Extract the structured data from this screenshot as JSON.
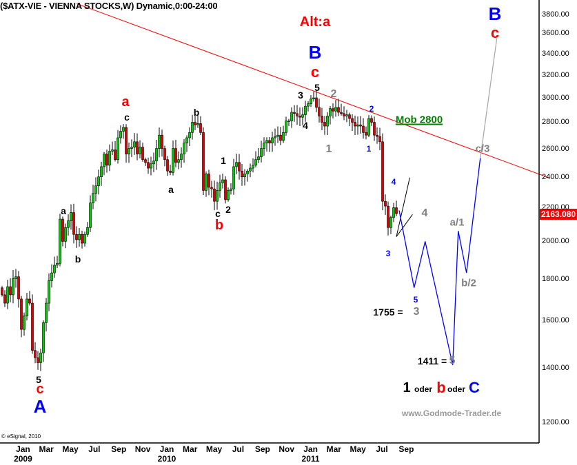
{
  "title": "($ATX-VIE - VIENNA STOCKS,W) Dynamic,0:00-24:00",
  "copyright": "© eSignal, 2010",
  "watermark": "www.Godmode-Trader.de",
  "last_price_tag": "2163.080",
  "colors": {
    "up": "#00cc00",
    "down": "#dd0000",
    "trendline": "#ff0000",
    "forecast": "#0000ff",
    "forecast_ext": "#aaaaaa",
    "tag": "#ff0000"
  },
  "chart_data": {
    "type": "candlestick",
    "scale": "log",
    "ylim": [
      1200,
      3800
    ],
    "grid": false,
    "interval": "weekly",
    "start_week": "2008-11-14",
    "closes": [
      1720,
      1680,
      1760,
      1720,
      1800,
      1810,
      1700,
      1560,
      1620,
      1700,
      1680,
      1470,
      1440,
      1420,
      1460,
      1590,
      1680,
      1790,
      1830,
      1870,
      1880,
      2130,
      2000,
      2080,
      2120,
      2170,
      2040,
      2010,
      2040,
      1990,
      2040,
      2080,
      2230,
      2290,
      2340,
      2400,
      2470,
      2560,
      2480,
      2580,
      2590,
      2520,
      2680,
      2730,
      2760,
      2560,
      2600,
      2610,
      2650,
      2560,
      2610,
      2520,
      2500,
      2460,
      2490,
      2510,
      2600,
      2700,
      2600,
      2520,
      2440,
      2430,
      2600,
      2500,
      2520,
      2560,
      2640,
      2680,
      2720,
      2800,
      2780,
      2790,
      2720,
      2310,
      2420,
      2330,
      2320,
      2240,
      2310,
      2360,
      2380,
      2250,
      2310,
      2320,
      2470,
      2500,
      2440,
      2400,
      2420,
      2440,
      2460,
      2480,
      2520,
      2540,
      2600,
      2640,
      2660,
      2640,
      2680,
      2690,
      2700,
      2660,
      2720,
      2810,
      2810,
      2880,
      2870,
      2850,
      2840,
      2860,
      2930,
      2950,
      2990,
      3000,
      2920,
      2850,
      2800,
      2770,
      2850,
      2910,
      2890,
      2920,
      2880,
      2870,
      2850,
      2860,
      2830,
      2800,
      2770,
      2780,
      2770,
      2720,
      2700,
      2830,
      2800,
      2700,
      2690,
      2650,
      2240,
      2210,
      2080,
      2140,
      2200,
      2163
    ],
    "y_ticks": [
      "1200.00",
      "1400.00",
      "1600.00",
      "1800.00",
      "2000.00",
      "2200.00",
      "2400.00",
      "2600.00",
      "2800.00",
      "3000.00",
      "3200.00",
      "3400.00",
      "3600.00",
      "3800.00"
    ],
    "x_ticks": [
      {
        "date": "2009-01-01",
        "label": "Jan",
        "year": "2009"
      },
      {
        "date": "2009-03-01",
        "label": "Mar"
      },
      {
        "date": "2009-05-01",
        "label": "May"
      },
      {
        "date": "2009-07-01",
        "label": "Jul"
      },
      {
        "date": "2009-09-01",
        "label": "Sep"
      },
      {
        "date": "2009-11-01",
        "label": "Nov"
      },
      {
        "date": "2010-01-01",
        "label": "Jan",
        "year": "2010"
      },
      {
        "date": "2010-03-01",
        "label": "Mar"
      },
      {
        "date": "2010-05-01",
        "label": "May"
      },
      {
        "date": "2010-07-01",
        "label": "Jul"
      },
      {
        "date": "2010-09-01",
        "label": "Sep"
      },
      {
        "date": "2010-11-01",
        "label": "Nov"
      },
      {
        "date": "2011-01-01",
        "label": "Jan",
        "year": "2011"
      },
      {
        "date": "2011-03-01",
        "label": "Mar"
      },
      {
        "date": "2011-05-01",
        "label": "May"
      },
      {
        "date": "2011-07-01",
        "label": "Jul"
      },
      {
        "date": "2011-09-01",
        "label": "Sep"
      }
    ],
    "trendline": [
      [
        "2009-05-22",
        3915
      ],
      [
        "2012-09-01",
        2395
      ]
    ],
    "triangle": {
      "apex": [
        "2011-08-12",
        2027
      ],
      "upper": [
        "2011-09-15",
        2395
      ],
      "lower": [
        "2011-09-22",
        2158
      ]
    },
    "forecast_path": [
      [
        "2011-08-19",
        2183
      ],
      [
        "2011-09-26",
        1755
      ],
      [
        "2011-10-24",
        2000
      ],
      [
        "2012-01-02",
        1411
      ],
      [
        "2012-01-16",
        2060
      ],
      [
        "2012-02-06",
        1830
      ],
      [
        "2012-03-12",
        2530
      ]
    ],
    "forecast_extension": [
      [
        "2012-03-12",
        2530
      ],
      [
        "2012-04-23",
        3550
      ]
    ],
    "annotations": [
      {
        "text": "Alt:a",
        "color": "#ff0000"
      },
      {
        "text": "B",
        "color": "#0000ff"
      },
      {
        "text": "c",
        "color": "#ff0000"
      },
      {
        "text": "5",
        "color": "#000000"
      },
      {
        "text": "3",
        "color": "#000000"
      },
      {
        "text": "4",
        "color": "#000000"
      },
      {
        "text": "2",
        "color": "#808080"
      },
      {
        "text": "1",
        "color": "#808080"
      },
      {
        "text": "2",
        "color": "#0000ff"
      },
      {
        "text": "1",
        "color": "#0000ff"
      },
      {
        "text": "Mob 2800",
        "color": "#008000"
      },
      {
        "text": "4",
        "color": "#0000ff"
      },
      {
        "text": "3",
        "color": "#0000ff"
      },
      {
        "text": "4",
        "color": "#808080"
      },
      {
        "text": "5",
        "color": "#0000ff"
      },
      {
        "text": "a/1",
        "color": "#808080"
      },
      {
        "text": "b/2",
        "color": "#808080"
      },
      {
        "text": "c/3",
        "color": "#808080"
      },
      {
        "text": "B",
        "color": "#0000ff"
      },
      {
        "text": "c",
        "color": "#ff0000"
      },
      {
        "text": "1755 =",
        "color": "#000000"
      },
      {
        "text": "3",
        "color": "#808080"
      },
      {
        "text": "1411 =",
        "color": "#000000"
      },
      {
        "text": "5",
        "color": "#808080"
      },
      {
        "text": "1",
        "color": "#000000"
      },
      {
        "text": "oder",
        "color": "#000000"
      },
      {
        "text": "b",
        "color": "#ff0000"
      },
      {
        "text": "oder",
        "color": "#000000"
      },
      {
        "text": "C",
        "color": "#0000ff"
      },
      {
        "text": "a",
        "color": "#ff0000"
      },
      {
        "text": "c",
        "color": "#000000"
      },
      {
        "text": "b",
        "color": "#000000"
      },
      {
        "text": "a",
        "color": "#000000"
      },
      {
        "text": "1",
        "color": "#000000"
      },
      {
        "text": "c",
        "color": "#000000"
      },
      {
        "text": "2",
        "color": "#000000"
      },
      {
        "text": "b",
        "color": "#ff0000"
      },
      {
        "text": "a",
        "color": "#000000"
      },
      {
        "text": "b",
        "color": "#000000"
      },
      {
        "text": "5",
        "color": "#000000"
      },
      {
        "text": "c",
        "color": "#ff0000"
      },
      {
        "text": "A",
        "color": "#0000ff"
      }
    ]
  }
}
